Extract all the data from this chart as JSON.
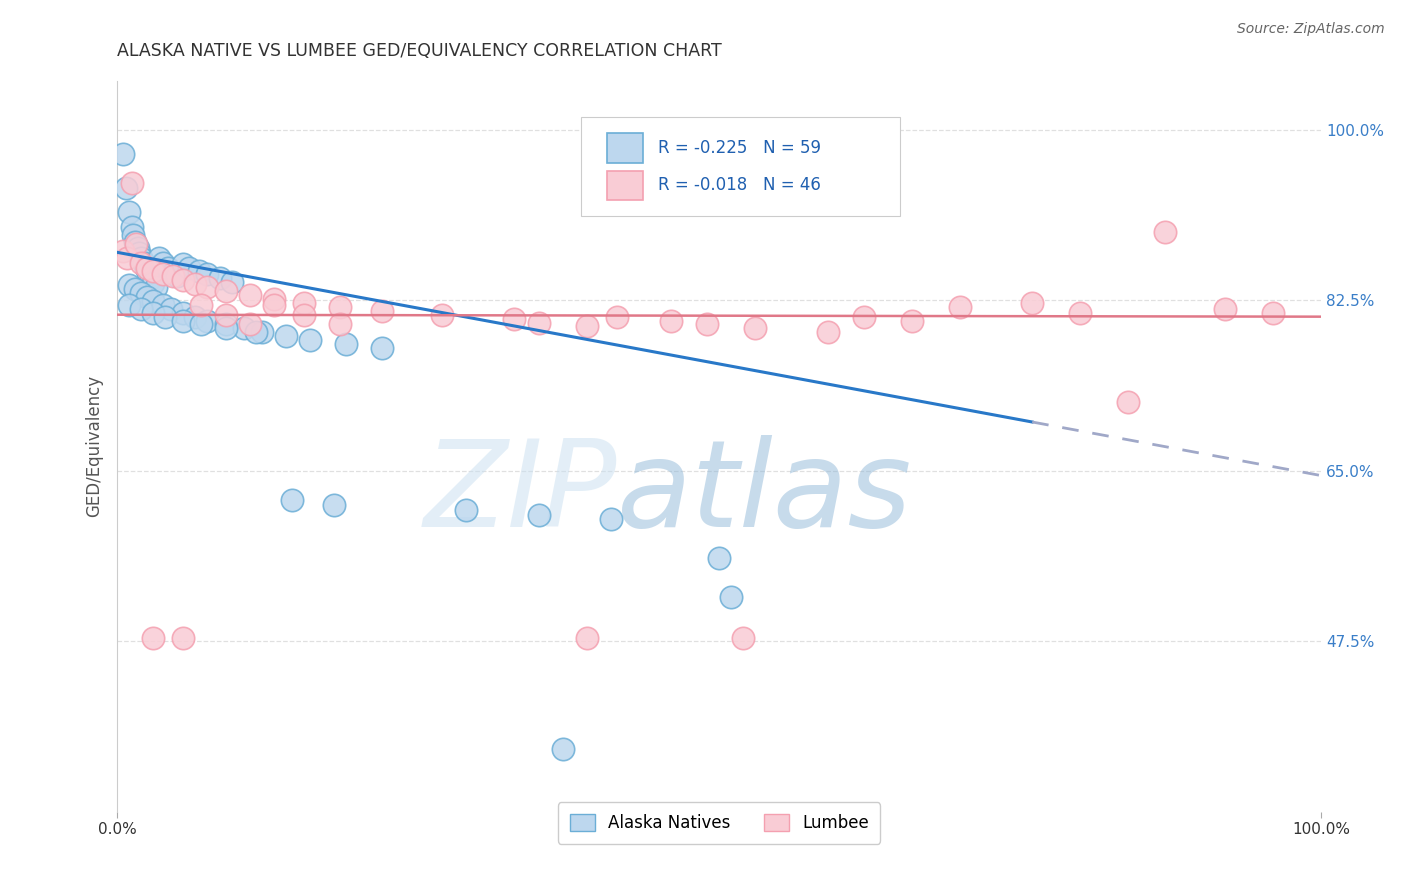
{
  "title": "ALASKA NATIVE VS LUMBEE GED/EQUIVALENCY CORRELATION CHART",
  "source": "Source: ZipAtlas.com",
  "ylabel": "GED/Equivalency",
  "xlim": [
    0.0,
    1.0
  ],
  "ylim": [
    0.3,
    1.05
  ],
  "yticks": [
    0.475,
    0.65,
    0.825,
    1.0
  ],
  "ytick_labels": [
    "47.5%",
    "65.0%",
    "82.5%",
    "100.0%"
  ],
  "xticks": [
    0.0,
    1.0
  ],
  "xtick_labels": [
    "0.0%",
    "100.0%"
  ],
  "alaska_R": "-0.225",
  "alaska_N": "59",
  "lumbee_R": "-0.018",
  "lumbee_N": "46",
  "alaska_color": "#6baed6",
  "alaska_fill": "#bdd7ee",
  "lumbee_color": "#f4a0b0",
  "lumbee_fill": "#f9ccd5",
  "alaska_line_start_y": 0.874,
  "alaska_line_end_y": 0.645,
  "alaska_line_dash_start": 0.76,
  "lumbee_line_start_y": 0.81,
  "lumbee_line_end_y": 0.808,
  "alaska_scatter_x": [
    0.005,
    0.007,
    0.01,
    0.012,
    0.013,
    0.015,
    0.017,
    0.018,
    0.02,
    0.022,
    0.024,
    0.026,
    0.028,
    0.03,
    0.032,
    0.035,
    0.038,
    0.042,
    0.046,
    0.05,
    0.055,
    0.06,
    0.068,
    0.075,
    0.085,
    0.095,
    0.01,
    0.015,
    0.02,
    0.025,
    0.03,
    0.038,
    0.045,
    0.055,
    0.065,
    0.075,
    0.09,
    0.105,
    0.12,
    0.14,
    0.16,
    0.19,
    0.22,
    0.01,
    0.02,
    0.03,
    0.04,
    0.055,
    0.07,
    0.09,
    0.115,
    0.145,
    0.18,
    0.29,
    0.35,
    0.41,
    0.5,
    0.51,
    0.37
  ],
  "alaska_scatter_y": [
    0.975,
    0.94,
    0.915,
    0.9,
    0.892,
    0.885,
    0.878,
    0.873,
    0.868,
    0.863,
    0.858,
    0.853,
    0.848,
    0.843,
    0.838,
    0.868,
    0.863,
    0.858,
    0.853,
    0.85,
    0.862,
    0.858,
    0.855,
    0.852,
    0.848,
    0.844,
    0.84,
    0.836,
    0.832,
    0.828,
    0.824,
    0.82,
    0.816,
    0.812,
    0.808,
    0.804,
    0.8,
    0.796,
    0.792,
    0.788,
    0.784,
    0.78,
    0.776,
    0.82,
    0.816,
    0.812,
    0.808,
    0.804,
    0.8,
    0.796,
    0.792,
    0.62,
    0.615,
    0.61,
    0.605,
    0.6,
    0.56,
    0.52,
    0.365
  ],
  "lumbee_scatter_x": [
    0.005,
    0.008,
    0.012,
    0.016,
    0.02,
    0.025,
    0.03,
    0.038,
    0.046,
    0.055,
    0.065,
    0.075,
    0.09,
    0.11,
    0.13,
    0.155,
    0.185,
    0.22,
    0.27,
    0.33,
    0.35,
    0.39,
    0.415,
    0.46,
    0.49,
    0.53,
    0.59,
    0.62,
    0.66,
    0.7,
    0.76,
    0.8,
    0.84,
    0.87,
    0.92,
    0.96,
    0.07,
    0.09,
    0.11,
    0.13,
    0.155,
    0.185,
    0.03,
    0.055,
    0.39,
    0.52
  ],
  "lumbee_scatter_y": [
    0.875,
    0.868,
    0.945,
    0.883,
    0.863,
    0.858,
    0.855,
    0.852,
    0.85,
    0.846,
    0.842,
    0.838,
    0.834,
    0.83,
    0.826,
    0.822,
    0.818,
    0.814,
    0.81,
    0.806,
    0.802,
    0.798,
    0.808,
    0.804,
    0.8,
    0.796,
    0.792,
    0.808,
    0.804,
    0.818,
    0.822,
    0.812,
    0.72,
    0.895,
    0.816,
    0.812,
    0.82,
    0.81,
    0.8,
    0.82,
    0.81,
    0.8,
    0.478,
    0.478,
    0.478,
    0.478
  ],
  "background_color": "#ffffff",
  "grid_color": "#e0e0e0",
  "watermark_text": "ZIP",
  "watermark_text2": "atlas"
}
